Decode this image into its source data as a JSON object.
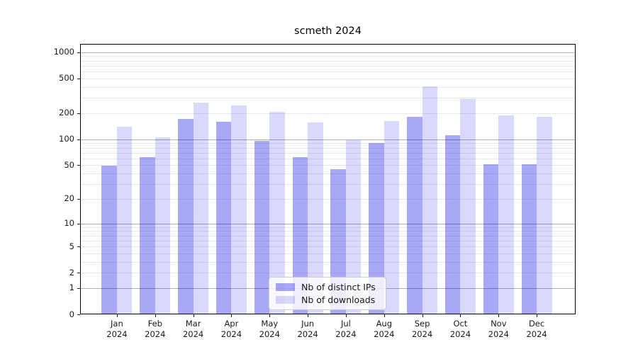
{
  "chart_data": {
    "type": "bar",
    "title": "scmeth 2024",
    "categories": [
      "Jan 2024",
      "Feb 2024",
      "Mar 2024",
      "Apr 2024",
      "May 2024",
      "Jun 2024",
      "Jul 2024",
      "Aug 2024",
      "Sep 2024",
      "Oct 2024",
      "Nov 2024",
      "Dec 2024"
    ],
    "x_tick_months": [
      "Jan",
      "Feb",
      "Mar",
      "Apr",
      "May",
      "Jun",
      "Jul",
      "Aug",
      "Sep",
      "Oct",
      "Nov",
      "Dec"
    ],
    "x_tick_year": "2024",
    "series": [
      {
        "name": "Nb of distinct IPs",
        "color": "rgba(0,0,230,0.34)",
        "values": [
          48,
          61,
          168,
          156,
          94,
          61,
          44,
          89,
          178,
          109,
          50,
          50
        ]
      },
      {
        "name": "Nb of downloads",
        "color": "rgba(0,0,230,0.15)",
        "values": [
          138,
          103,
          258,
          242,
          202,
          152,
          96,
          160,
          398,
          284,
          185,
          178
        ]
      }
    ],
    "yscale": "log1p",
    "y_ticks": [
      0,
      1,
      2,
      5,
      10,
      20,
      50,
      100,
      200,
      500,
      1000
    ],
    "ylim": [
      0,
      1243
    ],
    "grid": true,
    "legend_position": "lower center",
    "colors": {
      "background": "#ffffff",
      "spine": "#000000",
      "grid_major": "#aeaeae",
      "grid_minor": "#e8e8e8",
      "text": "#1a1a1a"
    }
  }
}
